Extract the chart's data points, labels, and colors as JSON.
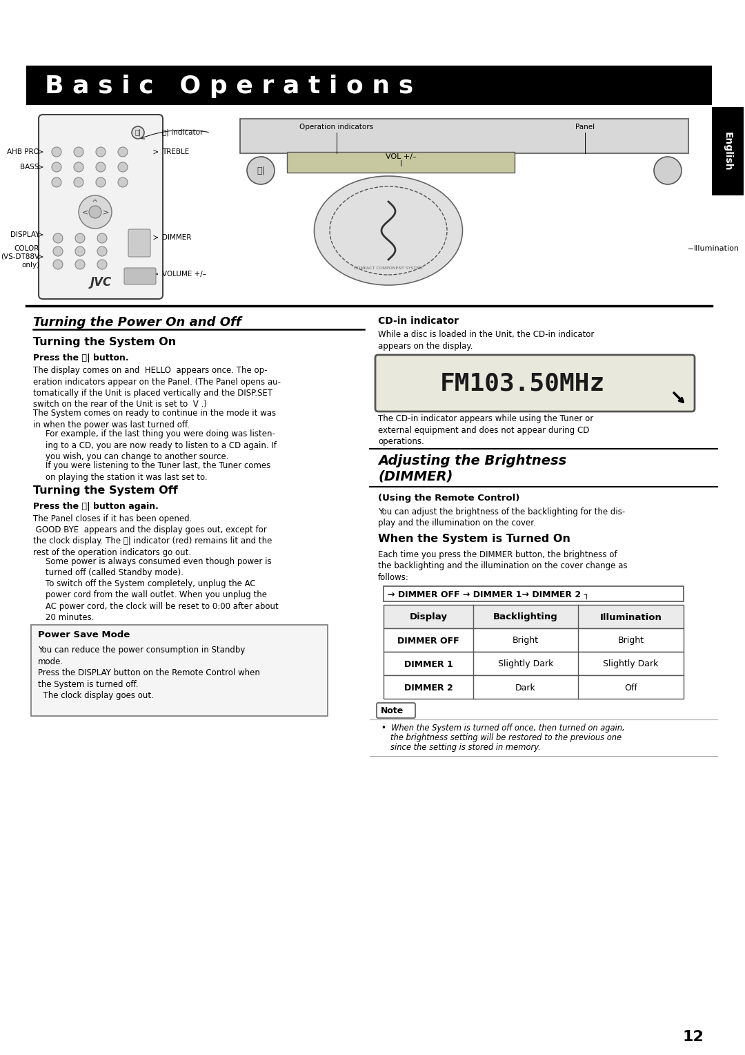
{
  "title": "B a s i c   O p e r a t i o n s",
  "page_number": "12",
  "bg_color": "#ffffff",
  "header_bg": "#000000",
  "header_color": "#ffffff",
  "english_tab": "English",
  "sec1_title": "Turning the Power On and Off",
  "sub1a_title": "Turning the System On",
  "sub1a_bold": "Press the ⏽| button.",
  "sub1a_p1": "The display comes on and  HELLO  appears once. The op-\neration indicators appear on the Panel. (The Panel opens au-\ntomatically if the Unit is placed vertically and the DISP.SET\nswitch on the rear of the Unit is set to  V .)",
  "sub1a_p2": "The System comes on ready to continue in the mode it was\nin when the power was last turned off.",
  "sub1a_ind1": "For example, if the last thing you were doing was listen-\ning to a CD, you are now ready to listen to a CD again. If\nyou wish, you can change to another source.",
  "sub1a_ind2": "If you were listening to the Tuner last, the Tuner comes\non playing the station it was last set to.",
  "sub1b_title": "Turning the System Off",
  "sub1b_bold": "Press the ⏽| button again.",
  "sub1b_p1": "The Panel closes if it has been opened.",
  "sub1b_p2": " GOOD BYE  appears and the display goes out, except for\nthe clock display. The ⏽| indicator (red) remains lit and the\nrest of the operation indicators go out.",
  "sub1b_ind1": "Some power is always consumed even though power is\nturned off (called Standby mode).",
  "sub1b_ind2": "To switch off the System completely, unplug the AC\npower cord from the wall outlet. When you unplug the\nAC power cord, the clock will be reset to 0:00 after about\n20 minutes.",
  "psm_title": "Power Save Mode",
  "psm_p1": "You can reduce the power consumption in Standby\nmode.",
  "psm_p2": "Press the DISPLAY button on the Remote Control when\nthe System is turned off.\n  The clock display goes out.",
  "cdin_title": "CD-in indicator",
  "cdin_text": "While a disc is loaded in the Unit, the CD-in indicator\nappears on the display.",
  "lcd_display": "FM103.50MHz",
  "lcd_caption": "The CD-in indicator appears while using the Tuner or\nexternal equipment and does not appear during CD\noperations.",
  "sec3_line1": "Adjusting the Brightness",
  "sec3_line2": "(DIMMER)",
  "sub3a_bold": "(Using the Remote Control)",
  "sub3a_text": "You can adjust the brightness of the backlighting for the dis-\nplay and the illumination on the cover.",
  "sub3b_title": "When the System is Turned On",
  "sub3b_text": "Each time you press the DIMMER button, the brightness of\nthe backlighting and the illumination on the cover change as\nfollows:",
  "dimmer_flow": "→ DIMMER OFF → DIMMER 1→ DIMMER 2 ┐",
  "table_headers": [
    "Display",
    "Backlighting",
    "Illumination"
  ],
  "table_rows": [
    [
      "DIMMER OFF",
      "Bright",
      "Bright"
    ],
    [
      "DIMMER 1",
      "Slightly Dark",
      "Slightly Dark"
    ],
    [
      "DIMMER 2",
      "Dark",
      "Off"
    ]
  ],
  "note_bullet": "•  When the System is turned off once, then turned on again,",
  "note_line2": "the brightness setting will be restored to the previous one",
  "note_line3": "since the setting is stored in memory."
}
